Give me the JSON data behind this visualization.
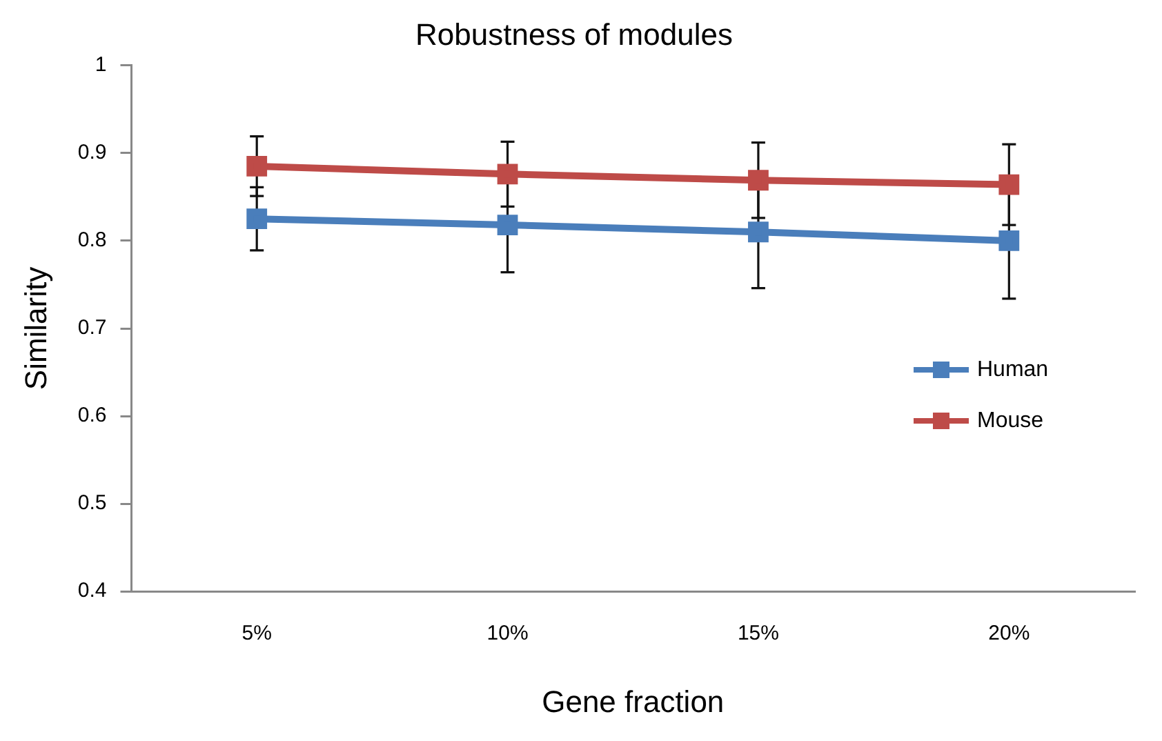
{
  "chart_data": {
    "type": "line",
    "title": "Robustness of modules",
    "xlabel": "Gene fraction",
    "ylabel": "Similarity",
    "categories": [
      "5%",
      "10%",
      "15%",
      "20%"
    ],
    "series": [
      {
        "name": "Human",
        "color": "#4a7ebb",
        "values": [
          0.825,
          0.818,
          0.81,
          0.8
        ],
        "errors": [
          0.036,
          0.054,
          0.064,
          0.066
        ]
      },
      {
        "name": "Mouse",
        "color": "#be4b48",
        "values": [
          0.885,
          0.876,
          0.869,
          0.864
        ],
        "errors": [
          0.034,
          0.037,
          0.043,
          0.046
        ]
      }
    ],
    "ylim": [
      0.4,
      1
    ],
    "yticks": [
      {
        "value": 0.4,
        "label": "0.4"
      },
      {
        "value": 0.5,
        "label": "0.5"
      },
      {
        "value": 0.6,
        "label": "0.6"
      },
      {
        "value": 0.7,
        "label": "0.7"
      },
      {
        "value": 0.8,
        "label": "0.8"
      },
      {
        "value": 0.9,
        "label": "0.9"
      },
      {
        "value": 1,
        "label": "1"
      }
    ],
    "grid": false,
    "legend": "right",
    "marker": "square",
    "line_style": "solid"
  }
}
